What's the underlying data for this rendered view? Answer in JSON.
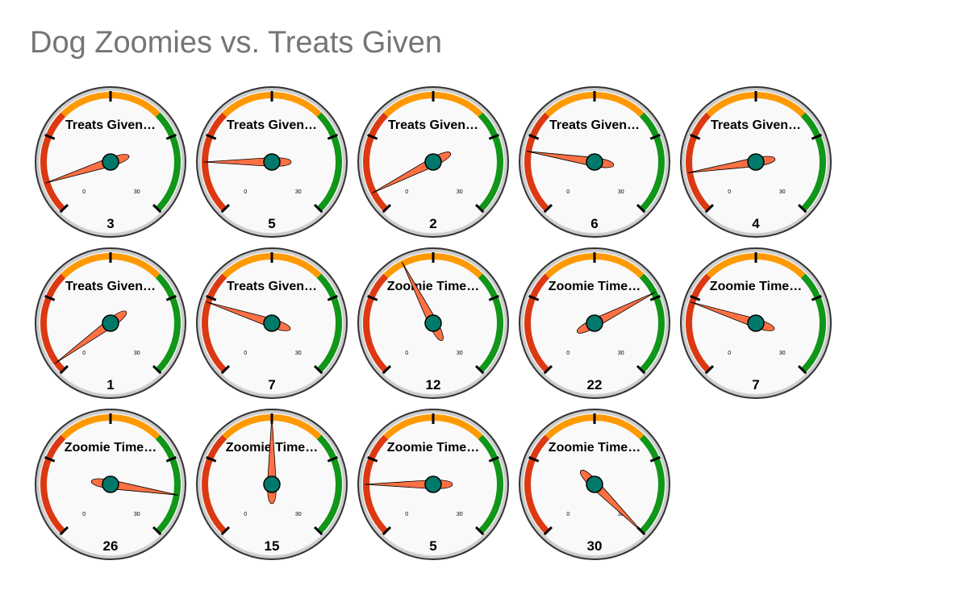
{
  "chart_data": {
    "type": "gauge",
    "title": "Dog Zoomies vs. Treats Given",
    "min": 0,
    "max": 30,
    "min_label": "0",
    "max_label": "30",
    "bands": [
      {
        "from": 0,
        "to": 10,
        "color": "#dc3912"
      },
      {
        "from": 10,
        "to": 20,
        "color": "#ff9900"
      },
      {
        "from": 20,
        "to": 30,
        "color": "#109618"
      }
    ],
    "gauges": [
      {
        "label": "Treats Given…",
        "value": 3
      },
      {
        "label": "Treats Given…",
        "value": 5
      },
      {
        "label": "Treats Given…",
        "value": 2
      },
      {
        "label": "Treats Given…",
        "value": 6
      },
      {
        "label": "Treats Given…",
        "value": 4
      },
      {
        "label": "Treats Given…",
        "value": 1
      },
      {
        "label": "Treats Given…",
        "value": 7
      },
      {
        "label": "Zoomie Time…",
        "value": 12
      },
      {
        "label": "Zoomie Time…",
        "value": 22
      },
      {
        "label": "Zoomie Time…",
        "value": 7
      },
      {
        "label": "Zoomie Time…",
        "value": 26
      },
      {
        "label": "Zoomie Time…",
        "value": 15
      },
      {
        "label": "Zoomie Time…",
        "value": 5
      },
      {
        "label": "Zoomie Time…",
        "value": 30
      }
    ],
    "colors": {
      "needle": "#ff7043",
      "hub": "#00796b",
      "face": "#f9f9f9",
      "rim": "#cccccc",
      "title": "#757575"
    }
  }
}
